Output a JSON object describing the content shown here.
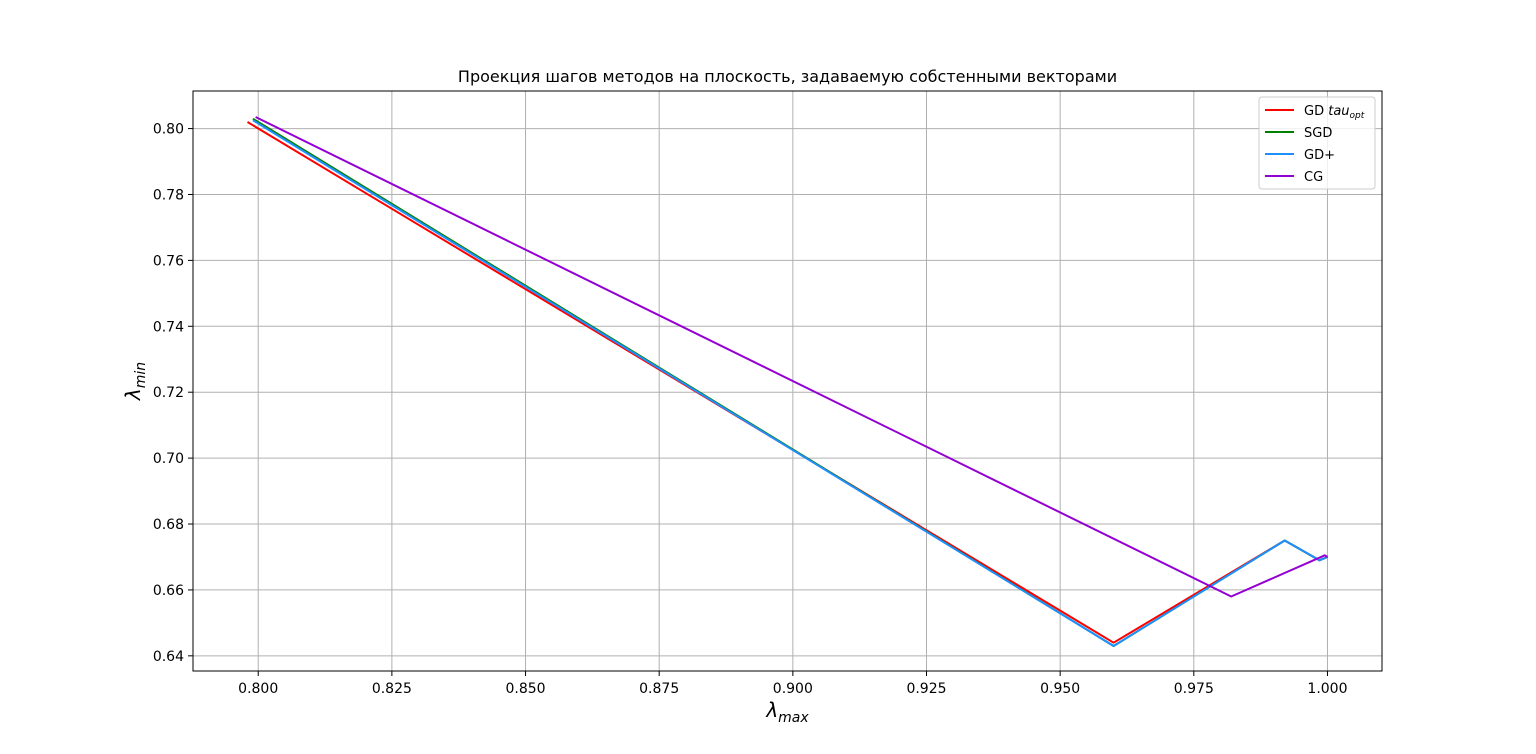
{
  "chart_data": {
    "type": "line",
    "title": "Проекция шагов методов на плоскость, задаваемую собстенными векторами",
    "xlabel": {
      "base": "λ",
      "sub": "max"
    },
    "ylabel": {
      "base": "λ",
      "sub": "min"
    },
    "xlim": [
      0.7878,
      1.0102
    ],
    "ylim": [
      0.6354,
      0.8114
    ],
    "xticks": [
      0.8,
      0.825,
      0.85,
      0.875,
      0.9,
      0.925,
      0.95,
      0.975,
      1.0
    ],
    "xtick_labels": [
      "0.800",
      "0.825",
      "0.850",
      "0.875",
      "0.900",
      "0.925",
      "0.950",
      "0.975",
      "1.000"
    ],
    "yticks": [
      0.64,
      0.66,
      0.68,
      0.7,
      0.72,
      0.74,
      0.76,
      0.78,
      0.8
    ],
    "ytick_labels": [
      "0.64",
      "0.66",
      "0.68",
      "0.70",
      "0.72",
      "0.74",
      "0.76",
      "0.78",
      "0.80"
    ],
    "grid": true,
    "legend_position": "top-right",
    "series": [
      {
        "name": "GD",
        "name_italic": "tau",
        "name_sub": "opt",
        "color": "#ff0000",
        "x": [
          0.798,
          0.96,
          0.992,
          0.9985,
          1.0
        ],
        "y": [
          0.802,
          0.644,
          0.675,
          0.669,
          0.67
        ]
      },
      {
        "name": "SGD",
        "color": "#008000",
        "x": [
          0.799,
          0.96,
          0.992,
          0.9985,
          1.0
        ],
        "y": [
          0.803,
          0.643,
          0.675,
          0.669,
          0.67
        ]
      },
      {
        "name": "GD+",
        "color": "#1e8fff",
        "x": [
          0.799,
          0.96,
          0.992,
          0.9985,
          1.0
        ],
        "y": [
          0.8025,
          0.643,
          0.675,
          0.669,
          0.67
        ]
      },
      {
        "name": "CG",
        "color": "#9400d3",
        "x": [
          0.7995,
          0.982,
          0.9995,
          1.0
        ],
        "y": [
          0.8035,
          0.658,
          0.6705,
          0.67
        ]
      }
    ]
  }
}
